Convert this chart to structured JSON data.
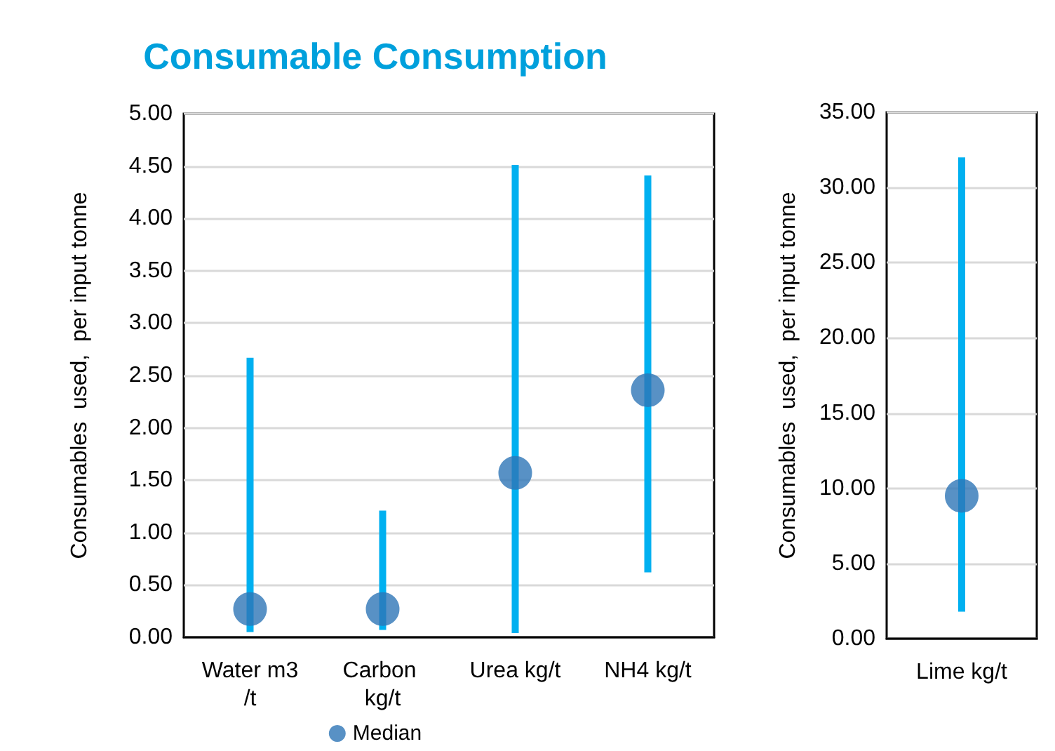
{
  "chart_data": [
    {
      "type": "bar",
      "title": "Consumable Consumption",
      "ylabel": "Consumables  used,  per input tonne",
      "categories": [
        "Water m3/t",
        "Carbon kg/t",
        "Urea kg/t",
        "NH4 kg/t"
      ],
      "series": [
        {
          "color": "#00b0f0",
          "base": [
            0.05,
            0.07,
            0.04,
            0.62
          ],
          "values": [
            2.62,
            1.14,
            4.47,
            3.79
          ]
        },
        {
          "type": "scatter",
          "name": "Median",
          "color": "#2e75b6",
          "values": [
            0.27,
            0.27,
            1.57,
            2.36
          ]
        }
      ],
      "ylim": [
        0,
        5
      ],
      "yticks": [
        {
          "value": 0,
          "label": "0.00"
        },
        {
          "value": 0.5,
          "label": "0.50"
        },
        {
          "value": 1,
          "label": "1.00"
        },
        {
          "value": 1.5,
          "label": "1.50"
        },
        {
          "value": 2,
          "label": "2.00"
        },
        {
          "value": 2.5,
          "label": "2.50"
        },
        {
          "value": 3,
          "label": "3.00"
        },
        {
          "value": 3.5,
          "label": "3.50"
        },
        {
          "value": 4,
          "label": "4.00"
        },
        {
          "value": 4.5,
          "label": "4.50"
        },
        {
          "value": 5,
          "label": "5.00"
        }
      ],
      "grid": "y",
      "legend": "bottom",
      "marker": "circle"
    },
    {
      "type": "bar",
      "ylabel": "Consumables  used,  per input tonne",
      "categories": [
        "Lime kg/t"
      ],
      "series": [
        {
          "color": "#00b0f0",
          "base": [
            1.8
          ],
          "values": [
            30.2
          ]
        },
        {
          "type": "scatter",
          "color": "#2e75b6",
          "values": [
            9.5
          ]
        }
      ],
      "ylim": [
        0,
        35
      ],
      "yticks": [
        {
          "value": 0,
          "label": "0.00"
        },
        {
          "value": 5,
          "label": "5.00"
        },
        {
          "value": 10,
          "label": "10.00"
        },
        {
          "value": 15,
          "label": "15.00"
        },
        {
          "value": 20,
          "label": "20.00"
        },
        {
          "value": 25,
          "label": "25.00"
        },
        {
          "value": 30,
          "label": "30.00"
        },
        {
          "value": 35,
          "label": "35.00"
        }
      ],
      "grid": "y",
      "marker": "circle"
    }
  ]
}
